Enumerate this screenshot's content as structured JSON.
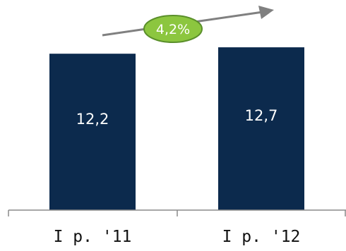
{
  "chart_data": {
    "type": "bar",
    "categories": [
      "I p. '11",
      "I p. '12"
    ],
    "values": [
      12.2,
      12.7
    ],
    "value_labels": [
      "12,2",
      "12,7"
    ],
    "bar_color": "#0c2a4d",
    "ylim": [
      0,
      13.2
    ],
    "grid": false,
    "annotation": {
      "text": "4,2%",
      "fill_color": "#8cc63f",
      "stroke_color": "#5a8f2a",
      "arrow_color": "#808080"
    }
  }
}
